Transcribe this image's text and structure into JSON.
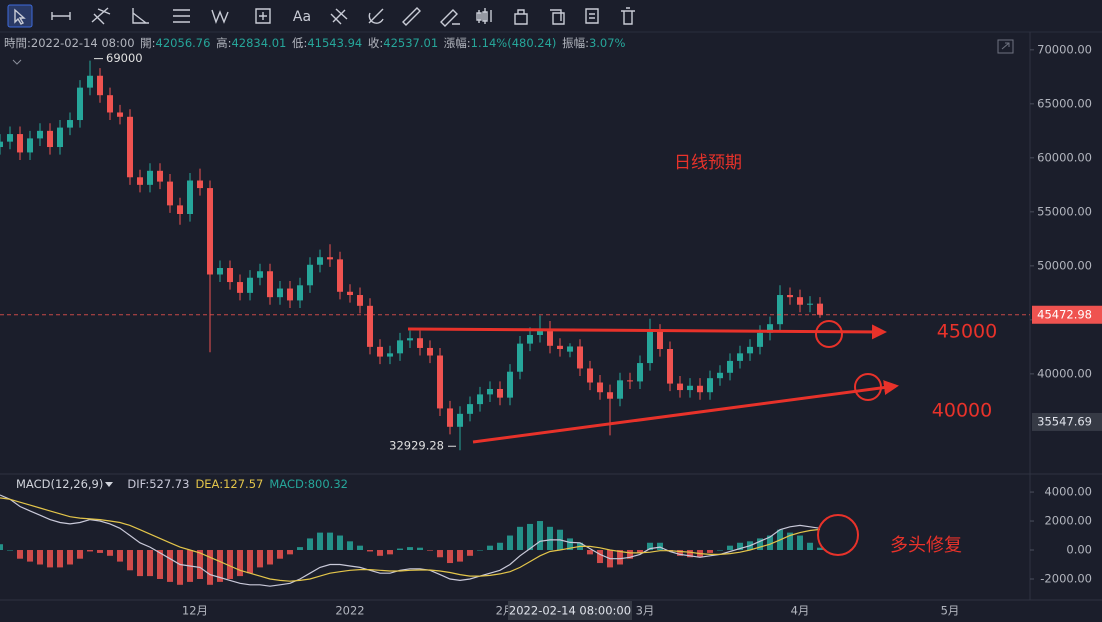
{
  "toolbar": {
    "text_tool": "Aa"
  },
  "info": {
    "time_label": "時間:",
    "time": "2022-02-14 08:00",
    "open_label": "開:",
    "high_label": "高:",
    "low_label": "低:",
    "close_label": "收:",
    "change_label": "漲幅:",
    "change": "1.14%(480.24)",
    "amplitude_label": "振幅:",
    "amplitude": "3.07%"
  },
  "annotations": [
    {
      "text": "日线预期",
      "color": "#e8322a"
    },
    {
      "text": "45000",
      "color": "#e8322a"
    },
    {
      "text": "40000",
      "color": "#e8322a"
    },
    {
      "text": "多头修复",
      "color": "#e8322a"
    }
  ],
  "chart_data": [
    {
      "type": "candlestick",
      "up_color": "#26a69a",
      "down_color": "#ef5350",
      "x": [
        0,
        2,
        4,
        6,
        8,
        10,
        12,
        14,
        16,
        18,
        20,
        22,
        24,
        26,
        28,
        30,
        32,
        34,
        36,
        38,
        40,
        42,
        44,
        46,
        48,
        50,
        52,
        54,
        56,
        58,
        60,
        62,
        64,
        66,
        68,
        70,
        72,
        74,
        76,
        78,
        80,
        82,
        84,
        86,
        88,
        90,
        92,
        94,
        96,
        98,
        100,
        102,
        104,
        106,
        108,
        110,
        112,
        114,
        116,
        118,
        120,
        122,
        124,
        126,
        128,
        130,
        132,
        134,
        136,
        138,
        140,
        142,
        144,
        146,
        148,
        150,
        152,
        154,
        156,
        158,
        160,
        162,
        164
      ],
      "open": [
        61000,
        61500,
        62200,
        60500,
        61800,
        62500,
        61000,
        62800,
        63500,
        66500,
        67600,
        65800,
        64200,
        63800,
        58200,
        57500,
        58800,
        57800,
        55600,
        54800,
        57900,
        57200,
        49200,
        49800,
        48500,
        47500,
        48900,
        49500,
        47100,
        47900,
        46800,
        48200,
        50100,
        50800,
        50600,
        47600,
        47300,
        46300,
        42500,
        41600,
        41900,
        43100,
        43300,
        42400,
        41700,
        36800,
        35100,
        36300,
        37200,
        38100,
        38600,
        37800,
        40200,
        42800,
        43600,
        44200,
        42600,
        42056.76,
        42537.01,
        40500,
        39200,
        38300,
        37700,
        39400,
        39300,
        41000,
        43900,
        42300,
        39100,
        38500,
        38900,
        38300,
        39600,
        40100,
        41200,
        41900,
        42500,
        43800,
        44600,
        47300,
        47100,
        46400,
        46500
      ],
      "high": [
        62200,
        62900,
        62900,
        62500,
        63200,
        63200,
        63500,
        64200,
        67200,
        69000,
        68300,
        66500,
        64900,
        64500,
        58900,
        59500,
        59500,
        58500,
        56300,
        58600,
        59000,
        57900,
        50500,
        50500,
        49200,
        49600,
        50200,
        50200,
        48600,
        48600,
        48900,
        50800,
        51500,
        52000,
        51300,
        48300,
        48000,
        47000,
        43200,
        42600,
        43800,
        44000,
        44000,
        43100,
        42400,
        37500,
        37000,
        37900,
        38800,
        39300,
        39300,
        40900,
        43500,
        44300,
        45400,
        44900,
        43300,
        42834.01,
        43200,
        41200,
        39900,
        39000,
        40100,
        40100,
        41700,
        45100,
        44600,
        43000,
        39800,
        39600,
        39600,
        40300,
        40800,
        41900,
        42600,
        43200,
        44500,
        45300,
        48200,
        48000,
        47800,
        47200,
        47100
      ],
      "low": [
        60300,
        60800,
        59800,
        59800,
        61100,
        60300,
        60300,
        62100,
        62800,
        65800,
        65100,
        63500,
        63100,
        57500,
        56800,
        56800,
        57100,
        54900,
        53800,
        54100,
        56500,
        42000,
        48500,
        47800,
        46800,
        46800,
        48200,
        46400,
        46400,
        46100,
        46100,
        47500,
        49400,
        49900,
        46900,
        46600,
        45600,
        41800,
        40900,
        40900,
        41200,
        42400,
        41700,
        41000,
        36100,
        34400,
        32929.28,
        35600,
        36500,
        37400,
        37100,
        37100,
        39500,
        42100,
        42900,
        41900,
        41600,
        41543.94,
        39800,
        38500,
        37600,
        34300,
        37000,
        38600,
        38600,
        40300,
        41600,
        38400,
        37800,
        37800,
        37600,
        37600,
        38900,
        39400,
        40500,
        41200,
        41800,
        43100,
        43900,
        46400,
        45700,
        45700,
        45200
      ],
      "close": [
        61500,
        62200,
        60500,
        61800,
        62500,
        61000,
        62800,
        63500,
        66500,
        67600,
        65800,
        64200,
        63800,
        58200,
        57500,
        58800,
        57800,
        55600,
        54800,
        57900,
        57200,
        49200,
        49800,
        48500,
        47500,
        48900,
        49500,
        47100,
        47900,
        46800,
        48200,
        50100,
        50800,
        50600,
        47600,
        47300,
        46300,
        42500,
        41600,
        41900,
        43100,
        43300,
        42400,
        41700,
        36800,
        35100,
        36300,
        37200,
        38100,
        38600,
        37800,
        40200,
        42800,
        43600,
        44200,
        42600,
        42300,
        42537.01,
        40500,
        39200,
        38300,
        37700,
        39400,
        39300,
        41000,
        43900,
        42300,
        39100,
        38500,
        38900,
        38300,
        39600,
        40100,
        41200,
        41900,
        42500,
        43800,
        44600,
        47300,
        47100,
        46400,
        46500,
        45472.98
      ],
      "xlim": [
        0,
        206
      ],
      "xticks": [
        {
          "value": 39,
          "label": "12月"
        },
        {
          "value": 70,
          "label": "2022"
        },
        {
          "value": 101,
          "label": "2月"
        },
        {
          "value": 129,
          "label": "3月"
        },
        {
          "value": 160,
          "label": "4月"
        },
        {
          "value": 190,
          "label": "5月"
        }
      ],
      "ylim": [
        31100,
        71650
      ],
      "yticks": [
        {
          "value": 40000,
          "label": "40000.00"
        },
        {
          "value": 45000,
          "label": "45000.00"
        },
        {
          "value": 50000,
          "label": "50000.00"
        },
        {
          "value": 55000,
          "label": "55000.00"
        },
        {
          "value": 60000,
          "label": "60000.00"
        },
        {
          "value": 65000,
          "label": "65000.00"
        },
        {
          "value": 70000,
          "label": "70000.00"
        }
      ],
      "last_price": 45472.98,
      "crosshair": {
        "x": 114,
        "price": 35547.69,
        "time_label": "2022-02-14 08:00:00"
      }
    },
    {
      "type": "macd",
      "title": "MACD(12,26,9)",
      "x": [
        0,
        2,
        4,
        6,
        8,
        10,
        12,
        14,
        16,
        18,
        20,
        22,
        24,
        26,
        28,
        30,
        32,
        34,
        36,
        38,
        40,
        42,
        44,
        46,
        48,
        50,
        52,
        54,
        56,
        58,
        60,
        62,
        64,
        66,
        68,
        70,
        72,
        74,
        76,
        78,
        80,
        82,
        84,
        86,
        88,
        90,
        92,
        94,
        96,
        98,
        100,
        102,
        104,
        106,
        108,
        110,
        112,
        114,
        116,
        118,
        120,
        122,
        124,
        126,
        128,
        130,
        132,
        134,
        136,
        138,
        140,
        142,
        144,
        146,
        148,
        150,
        152,
        154,
        156,
        158,
        160,
        162,
        164
      ],
      "series": [
        {
          "name": "DIF:",
          "color": "#c9c9d9",
          "kind": "line",
          "values": [
            3800,
            3500,
            3000,
            2700,
            2400,
            2100,
            1900,
            1800,
            1900,
            2100,
            2000,
            1800,
            1500,
            1000,
            500,
            200,
            -200,
            -600,
            -1000,
            -1100,
            -1200,
            -1700,
            -1900,
            -2100,
            -2300,
            -2400,
            -2400,
            -2500,
            -2400,
            -2300,
            -2000,
            -1600,
            -1200,
            -1000,
            -1000,
            -1100,
            -1200,
            -1400,
            -1600,
            -1600,
            -1400,
            -1300,
            -1300,
            -1400,
            -1700,
            -2000,
            -2100,
            -2000,
            -1800,
            -1600,
            -1400,
            -1000,
            -400,
            100,
            600,
            700,
            700,
            527.73,
            500,
            100,
            -300,
            -600,
            -600,
            -500,
            -300,
            100,
            200,
            -100,
            -300,
            -400,
            -500,
            -400,
            -300,
            -100,
            100,
            300,
            600,
            900,
            1400,
            1600,
            1700,
            1600,
            1500
          ]
        },
        {
          "name": "DEA:",
          "color": "#e3c54a",
          "kind": "line",
          "values": [
            3600,
            3500,
            3300,
            3100,
            2900,
            2700,
            2500,
            2300,
            2200,
            2150,
            2100,
            2000,
            1900,
            1700,
            1400,
            1100,
            800,
            500,
            200,
            0,
            -200,
            -500,
            -800,
            -1100,
            -1400,
            -1600,
            -1800,
            -2000,
            -2100,
            -2150,
            -2100,
            -2000,
            -1800,
            -1600,
            -1500,
            -1400,
            -1350,
            -1350,
            -1400,
            -1450,
            -1450,
            -1400,
            -1380,
            -1380,
            -1450,
            -1550,
            -1700,
            -1800,
            -1800,
            -1750,
            -1650,
            -1500,
            -1200,
            -800,
            -400,
            -100,
            0,
            127.57,
            250,
            250,
            150,
            0,
            -100,
            -200,
            -200,
            -150,
            -50,
            -50,
            -100,
            -150,
            -250,
            -300,
            -300,
            -250,
            -150,
            0,
            200,
            400,
            700,
            1000,
            1200,
            1350,
            1420
          ]
        },
        {
          "name": "MACD:",
          "color": "#26a69a",
          "neg_color": "#ef5350",
          "kind": "bar",
          "values": [
            400,
            0,
            -600,
            -800,
            -1000,
            -1200,
            -1200,
            -1000,
            -600,
            -100,
            -200,
            -400,
            -800,
            -1400,
            -1800,
            -1800,
            -2000,
            -2200,
            -2400,
            -2200,
            -2000,
            -2400,
            -2200,
            -2000,
            -1800,
            -1600,
            -1200,
            -1000,
            -600,
            -300,
            200,
            800,
            1200,
            1200,
            1000,
            600,
            300,
            -100,
            -400,
            -300,
            100,
            200,
            160,
            -40,
            -500,
            -900,
            -800,
            -400,
            0,
            300,
            500,
            1000,
            1600,
            1800,
            2000,
            1600,
            1400,
            800.32,
            500,
            -300,
            -900,
            -1200,
            -1000,
            -600,
            -200,
            500,
            500,
            -100,
            -400,
            -500,
            -500,
            -200,
            0,
            300,
            500,
            600,
            800,
            1000,
            1400,
            1200,
            1000,
            500,
            160
          ]
        }
      ],
      "ylim": [
        -3450,
        4970
      ],
      "yticks": [
        {
          "value": -2000,
          "label": "-2000.00"
        },
        {
          "value": 0,
          "label": "0.00"
        },
        {
          "value": 2000,
          "label": "2000.00"
        },
        {
          "value": 4000,
          "label": "4000.00"
        }
      ]
    }
  ]
}
